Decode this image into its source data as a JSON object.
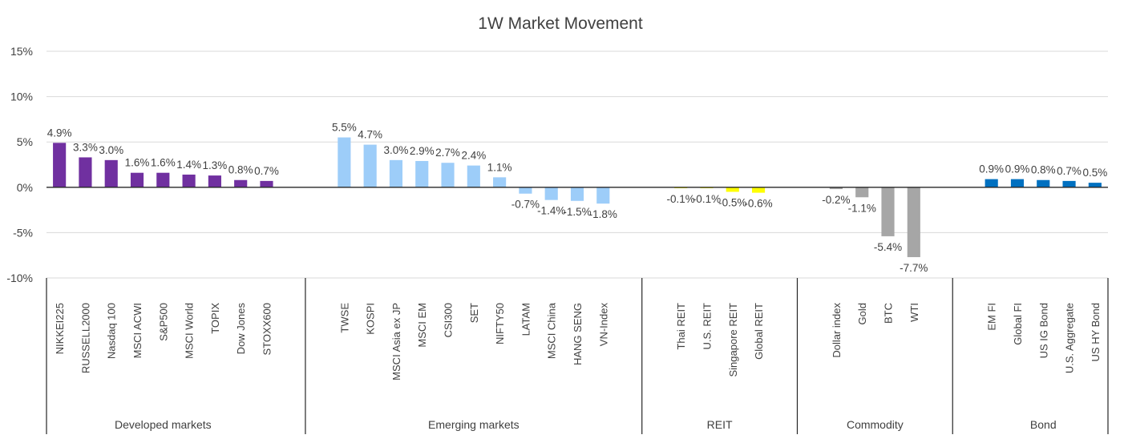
{
  "chart_data": {
    "type": "bar",
    "title": "1W Market Movement",
    "xlabel": "",
    "ylabel": "",
    "ylim": [
      -10,
      15
    ],
    "yticks": [
      15,
      10,
      5,
      0,
      -5,
      -10
    ],
    "ytick_labels": [
      "15%",
      "10%",
      "5%",
      "0%",
      "-5%",
      "-10%"
    ],
    "grid": true,
    "legend": "none",
    "groups": [
      {
        "name": "Developed  markets",
        "color": "#7030a0",
        "categories": [
          "NIKKEI225",
          "RUSSELL2000",
          "Nasdaq 100",
          "MSCI ACWI",
          "S&P500",
          "MSCI World",
          "TOPIX",
          "Dow Jones",
          "STOXX600"
        ],
        "values": [
          4.9,
          3.3,
          3.0,
          1.6,
          1.6,
          1.4,
          1.3,
          0.8,
          0.7
        ],
        "labels": [
          "4.9%",
          "3.3%",
          "3.0%",
          "1.6%",
          "1.6%",
          "1.4%",
          "1.3%",
          "0.8%",
          "0.7%"
        ]
      },
      {
        "name": "Emerging markets",
        "color": "#9dcdf9",
        "categories": [
          "TWSE",
          "KOSPI",
          "MSCI Asia ex JP",
          "MSCI EM",
          "CSI300",
          "SET",
          "NIFTY50",
          "LATAM",
          "MSCI China",
          "HANG SENG",
          "VN-Index"
        ],
        "values": [
          5.5,
          4.7,
          3.0,
          2.9,
          2.7,
          2.4,
          1.1,
          -0.7,
          -1.4,
          -1.5,
          -1.8
        ],
        "labels": [
          "5.5%",
          "4.7%",
          "3.0%",
          "2.9%",
          "2.7%",
          "2.4%",
          "1.1%",
          "-0.7%",
          "-1.4%",
          "-1.5%",
          "-1.8%"
        ]
      },
      {
        "name": "REIT",
        "color": "#ffff00",
        "categories": [
          "Thai REIT",
          "U.S. REIT",
          "Singapore REIT",
          "Global REIT"
        ],
        "values": [
          -0.1,
          -0.1,
          -0.5,
          -0.6
        ],
        "labels": [
          "-0.1%",
          "-0.1%",
          "-0.5%",
          "-0.6%"
        ]
      },
      {
        "name": "Commodity",
        "color": "#a6a6a6",
        "categories": [
          "Dollar index",
          "Gold",
          "BTC",
          "WTI"
        ],
        "values": [
          -0.2,
          -1.1,
          -5.4,
          -7.7
        ],
        "labels": [
          "-0.2%",
          "-1.1%",
          "-5.4%",
          "-7.7%"
        ]
      },
      {
        "name": "Bond",
        "color": "#0070c0",
        "categories": [
          "EM FI",
          "Global FI",
          "US IG Bond",
          "U.S. Aggregate",
          "US HY Bond"
        ],
        "values": [
          0.9,
          0.9,
          0.8,
          0.7,
          0.5
        ],
        "labels": [
          "0.9%",
          "0.9%",
          "0.8%",
          "0.7%",
          "0.5%"
        ]
      }
    ]
  }
}
